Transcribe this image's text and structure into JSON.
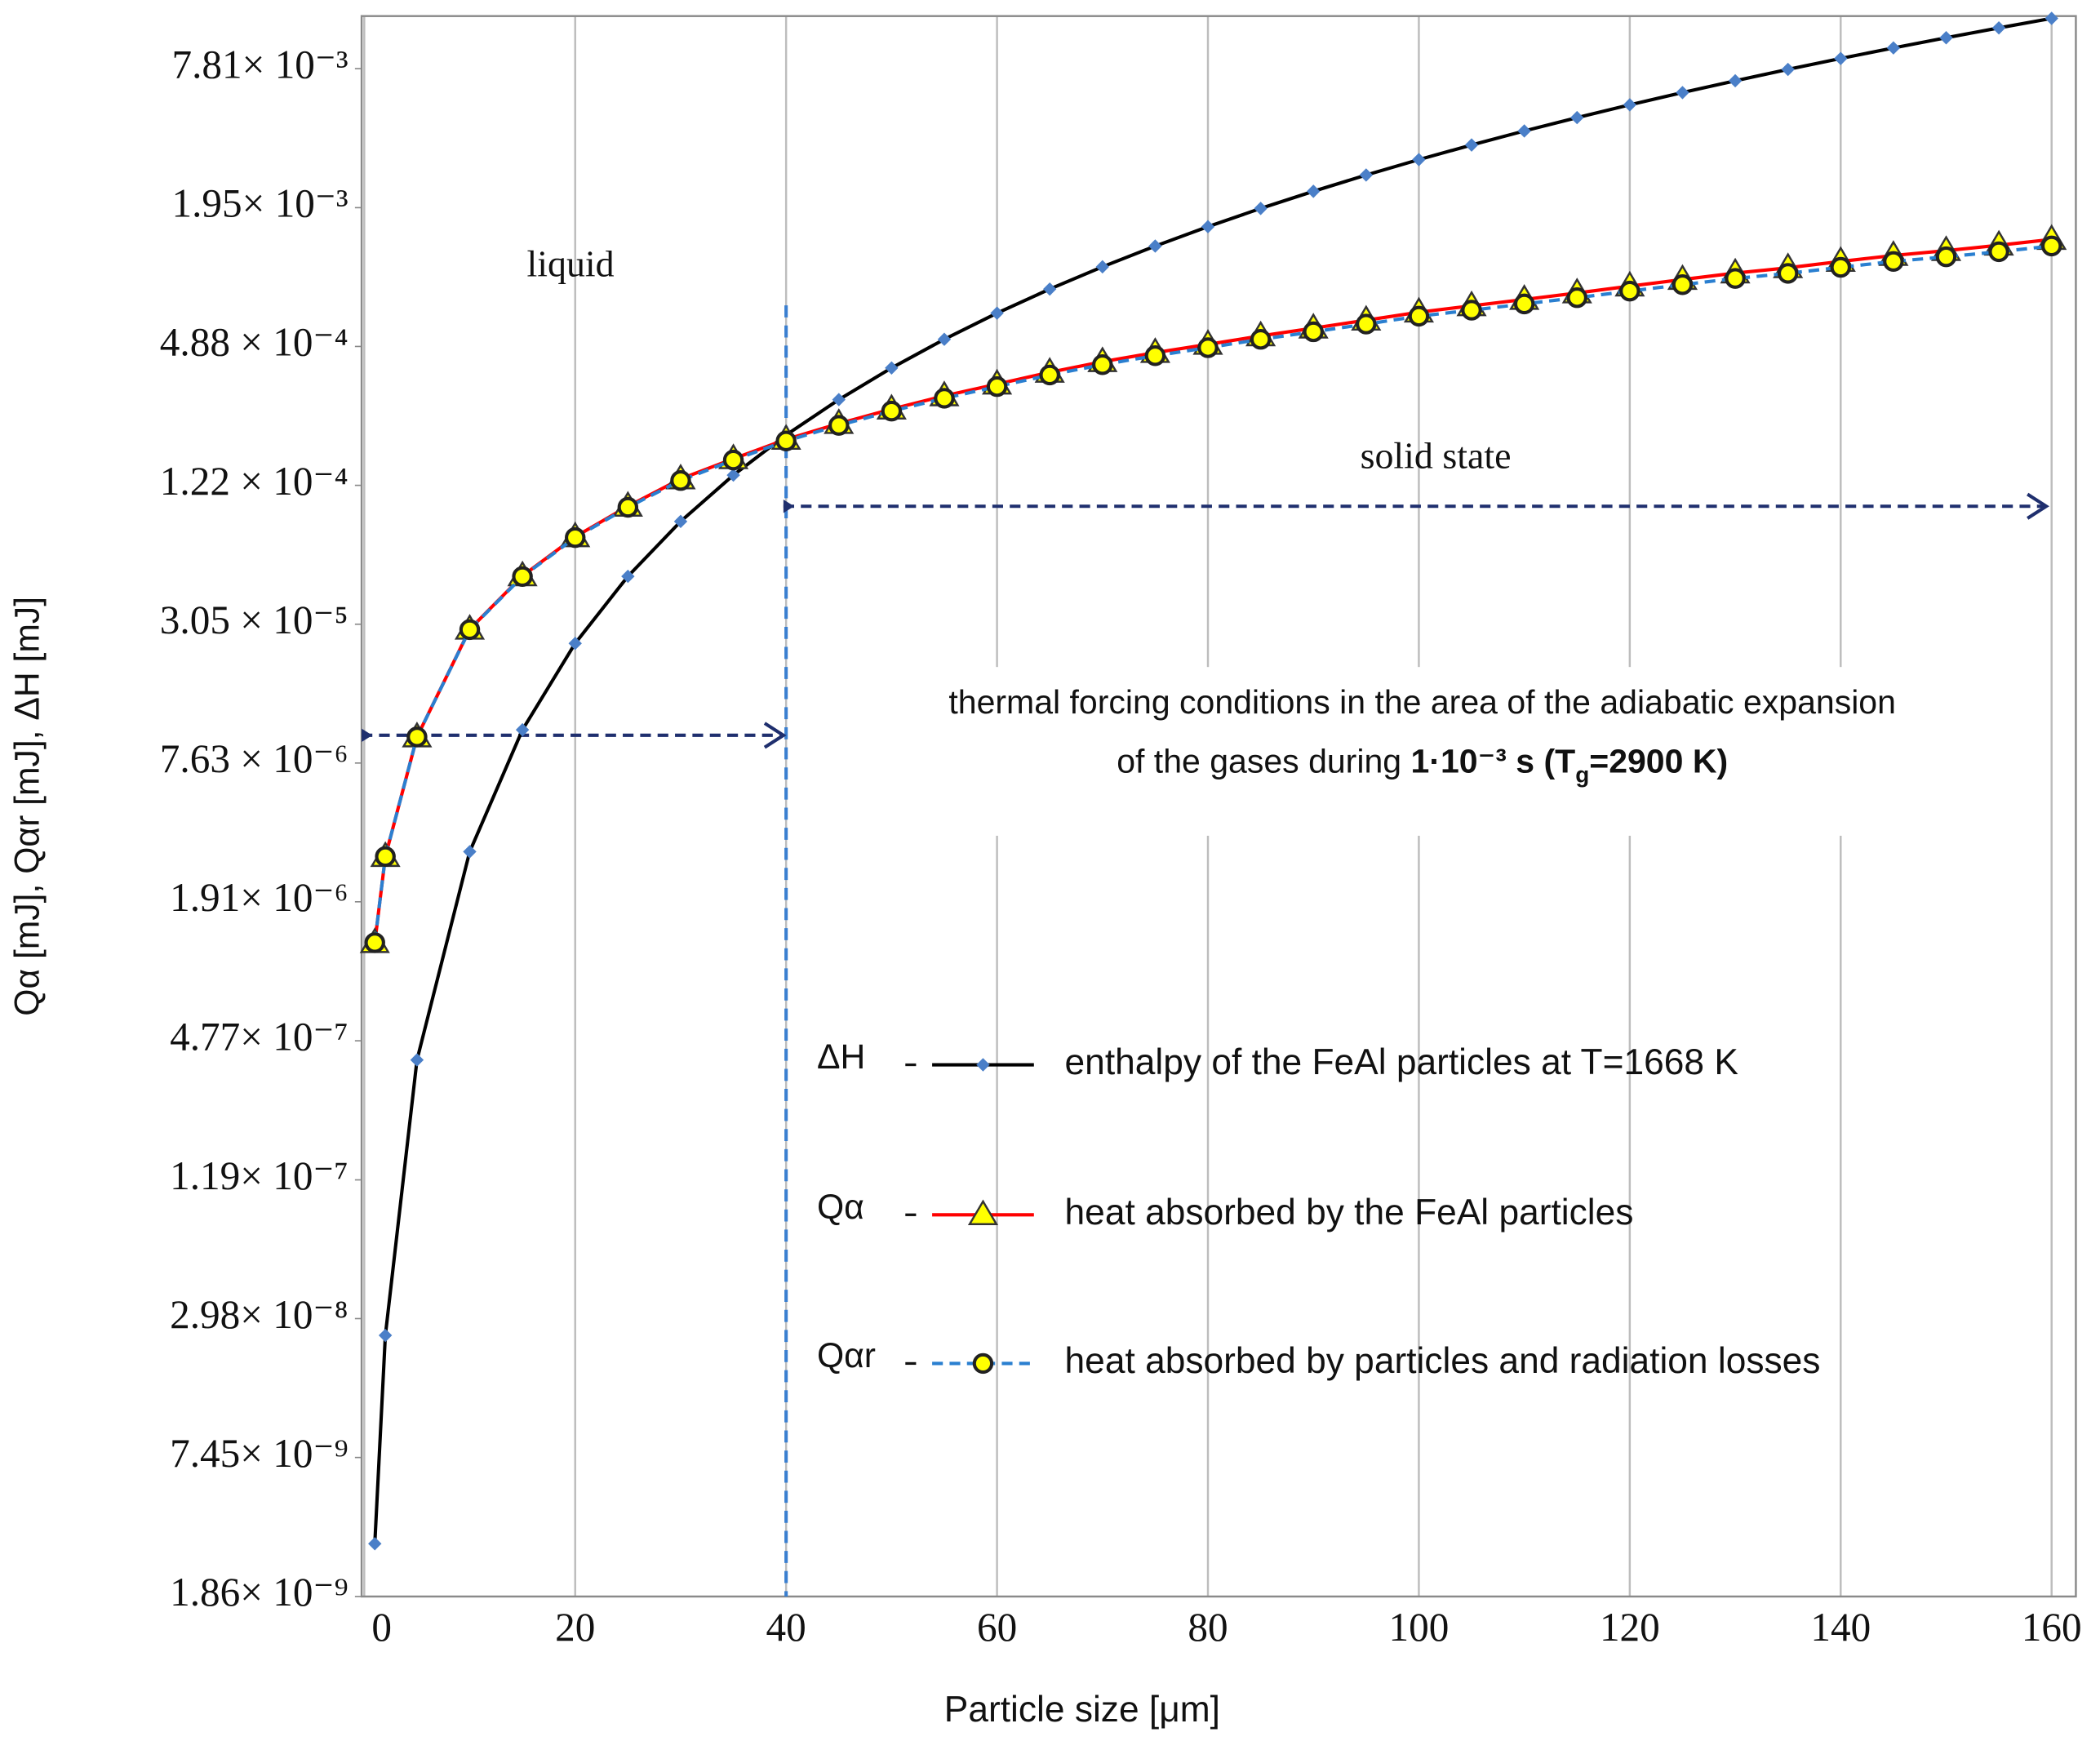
{
  "chart_data": {
    "type": "line",
    "x_label": "Particle size [μm]",
    "y_label": "Qα [mJ],   Qαr [mJ],   ΔH [mJ]",
    "xlim": [
      -0.25,
      162.3
    ],
    "xticks": [
      0,
      20,
      40,
      60,
      80,
      100,
      120,
      140,
      160
    ],
    "ylim": [
      1.86e-09,
      0.0132
    ],
    "log_y": true,
    "grid": "x",
    "yticks": [
      {
        "value": 1.86e-09,
        "label": "1.86× 10⁻⁹"
      },
      {
        "value": 7.45e-09,
        "label": "7.45× 10⁻⁹"
      },
      {
        "value": 2.98e-08,
        "label": "2.98× 10⁻⁸"
      },
      {
        "value": 1.19e-07,
        "label": "1.19× 10⁻⁷"
      },
      {
        "value": 4.77e-07,
        "label": "4.77× 10⁻⁷"
      },
      {
        "value": 1.91e-06,
        "label": "1.91× 10⁻⁶"
      },
      {
        "value": 7.63e-06,
        "label": "7.63 × 10⁻⁶"
      },
      {
        "value": 3.05e-05,
        "label": "3.05 × 10⁻⁵"
      },
      {
        "value": 0.000122,
        "label": "1.22 × 10⁻⁴"
      },
      {
        "value": 0.000488,
        "label": "4.88 × 10⁻⁴"
      },
      {
        "value": 0.00195,
        "label": "1.95× 10⁻³"
      },
      {
        "value": 0.00781,
        "label": "7.81× 10⁻³"
      }
    ],
    "x": [
      1,
      2,
      5,
      10,
      15,
      20,
      25,
      30,
      35,
      40,
      45,
      50,
      55,
      60,
      65,
      70,
      75,
      80,
      85,
      90,
      95,
      100,
      105,
      110,
      115,
      120,
      125,
      130,
      135,
      140,
      145,
      150,
      155,
      160
    ],
    "series": [
      {
        "symbol": "ΔH",
        "name": "enthalpy of the FeAl particles at T=1668 K",
        "color": "#000000",
        "marker": "diamond",
        "marker_color": "#4a7fc8",
        "dashed": false,
        "values": [
          3.15e-09,
          2.52e-08,
          3.94e-07,
          3.15e-06,
          1.063e-05,
          2.52e-05,
          4.92e-05,
          8.51e-05,
          0.0001351,
          0.0002016,
          0.000287,
          0.0003938,
          0.0005241,
          0.0006804,
          0.0008651,
          0.0010805,
          0.001329,
          0.001613,
          0.001935,
          0.002296,
          0.002701,
          0.00315,
          0.003646,
          0.004193,
          0.004791,
          0.005443,
          0.006152,
          0.006921,
          0.00775,
          0.008644,
          0.009604,
          0.010631,
          0.01173,
          0.012902
        ]
      },
      {
        "symbol": "Qα",
        "name": "heat absorbed by the FeAl particles",
        "color": "#ff0000",
        "marker": "triangle",
        "marker_color": "#ffff00",
        "dashed": false,
        "values": [
          1.27e-06,
          3e-06,
          9.9e-06,
          2.9e-05,
          4.94e-05,
          7.3e-05,
          9.9e-05,
          0.00013,
          0.000159,
          0.000193,
          0.000226,
          0.000261,
          0.000298,
          0.000335,
          0.000377,
          0.000419,
          0.000459,
          0.000498,
          0.000542,
          0.000586,
          0.000634,
          0.000687,
          0.000732,
          0.00078,
          0.000832,
          0.000891,
          0.000952,
          0.001015,
          0.00107,
          0.00114,
          0.00121,
          0.00127,
          0.00134,
          0.00142
        ]
      },
      {
        "symbol": "Qαr",
        "name": "heat absorbed by particles and radiation losses",
        "color": "#2a7fd0",
        "marker": "circle",
        "marker_color": "#ffff00",
        "dashed": true,
        "values": [
          1.27e-06,
          3e-06,
          9.9e-06,
          2.89e-05,
          4.91e-05,
          7.24e-05,
          9.8e-05,
          0.000128,
          0.000157,
          0.00019,
          0.000222,
          0.000256,
          0.000291,
          0.000327,
          0.000367,
          0.000407,
          0.000445,
          0.000482,
          0.000524,
          0.000565,
          0.00061,
          0.00066,
          0.000701,
          0.000746,
          0.000794,
          0.000848,
          0.000904,
          0.000962,
          0.001012,
          0.001075,
          0.00114,
          0.001194,
          0.001256,
          0.00133
        ]
      }
    ],
    "annotations": [
      "liquid",
      "solid state",
      "thermal forcing conditions in the area of the adiabatic expansion"
    ],
    "annotation_line2": [
      {
        "text": "of the gases  during ",
        "bold": false,
        "sub": false
      },
      {
        "text": "1·10⁻³ s (T",
        "bold": true,
        "sub": false
      },
      {
        "text": "g",
        "bold": true,
        "sub": true
      },
      {
        "text": "=2900 K)",
        "bold": true,
        "sub": false
      }
    ]
  }
}
